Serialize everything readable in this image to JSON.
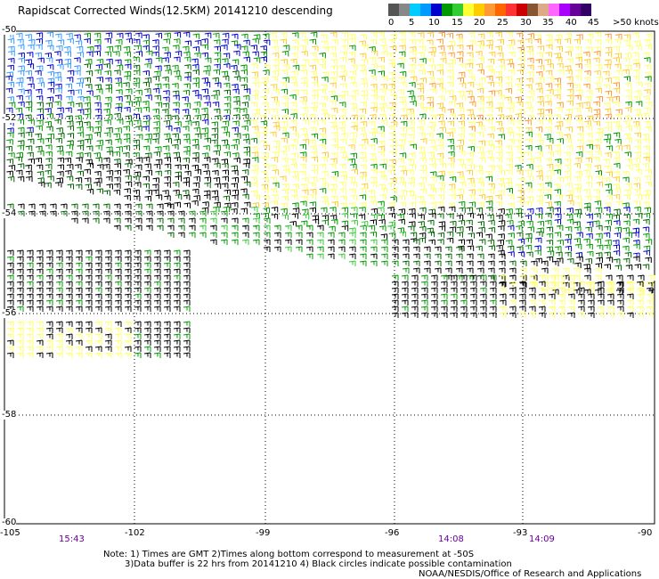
{
  "title": "Rapidscat Corrected Winds(12.5KM) 20141210 descending",
  "legend": {
    "labels": [
      "0",
      "5",
      "10",
      "15",
      "20",
      "25",
      "30",
      "35",
      "40",
      "45",
      ">50 knots"
    ],
    "colors": [
      "#555555",
      "#888888",
      "#00ccff",
      "#0099ff",
      "#0000cc",
      "#009900",
      "#33cc33",
      "#ffff33",
      "#ffcc00",
      "#ff9933",
      "#ff6600",
      "#ff3333",
      "#cc0000",
      "#885533",
      "#ddaa88",
      "#ff66ff",
      "#aa00ff",
      "#660099",
      "#330066"
    ]
  },
  "map": {
    "latitudes": [
      "-50",
      "-52",
      "-54",
      "-56",
      "-58",
      "-60"
    ],
    "longitudes": [
      "-105",
      "-102",
      "-99",
      "-96",
      "-93",
      "-90"
    ],
    "times": [
      "15:43",
      "14:08",
      "14:09"
    ],
    "wind_colors": {
      "light_blue": "#3399ff",
      "blue": "#0000cc",
      "green": "#009900",
      "dark_green": "#006600",
      "light_green": "#33cc33",
      "yellow": "#ffff66",
      "gold": "#ffcc33",
      "orange": "#ff9933",
      "black": "#000000"
    }
  },
  "notes": {
    "line1": "Note: 1) Times are GMT 2)Times along bottom correspond to measurement at -50S",
    "line2": "3)Data buffer is 22 hrs from 20141210 4) Black circles indicate possible contamination",
    "line3": "NOAA/NESDIS/Office of Research and Applications"
  }
}
